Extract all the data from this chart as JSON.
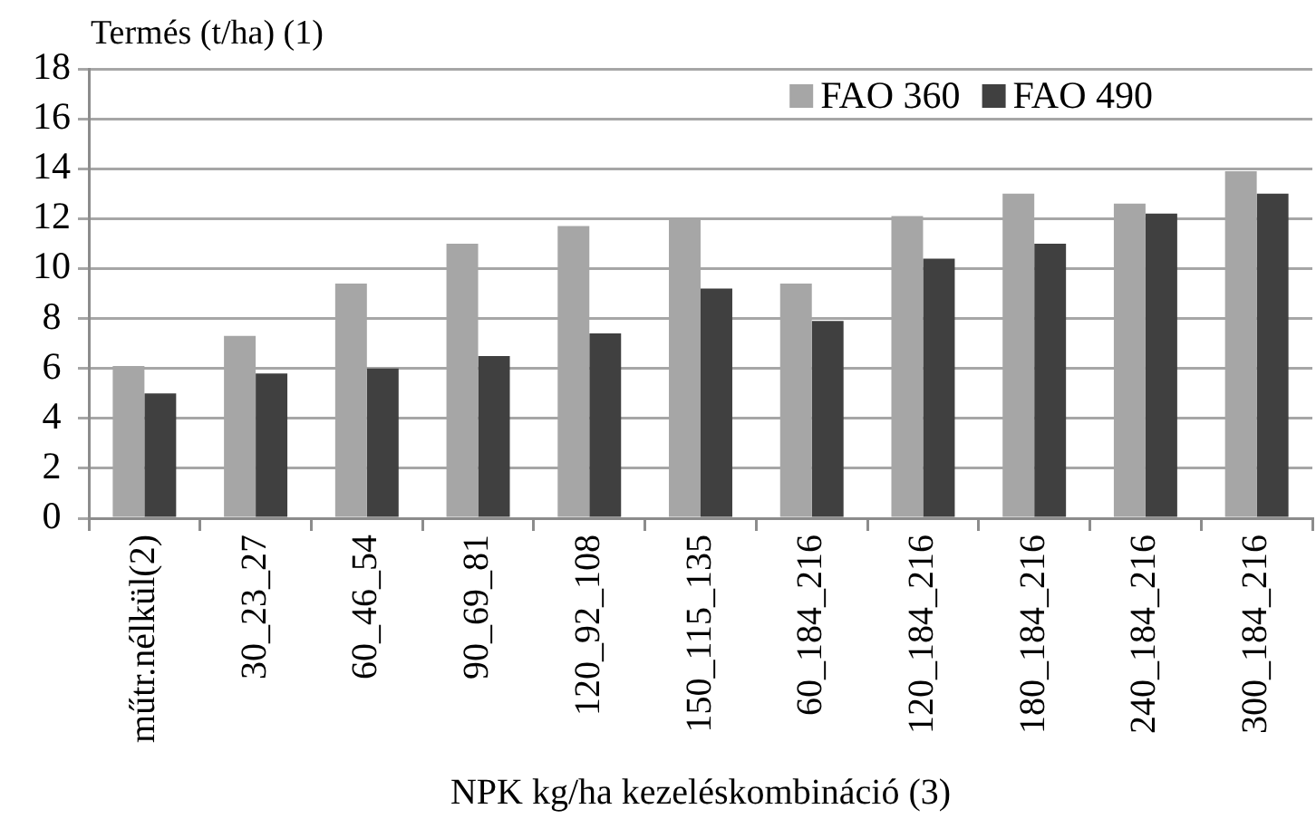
{
  "chart_data": {
    "type": "bar",
    "ylabel": "Termés (t/ha) (1)",
    "xlabel": "NPK kg/ha kezeléskombináció (3)",
    "categories": [
      "műtr.nélkül(2)",
      "30_23_27",
      "60_46_54",
      "90_69_81",
      "120_92_108",
      "150_115_135",
      "60_184_216",
      "120_184_216",
      "180_184_216",
      "240_184_216",
      "300_184_216"
    ],
    "series": [
      {
        "name": "FAO 360",
        "color": "#a6a6a6",
        "values": [
          6.1,
          7.3,
          9.4,
          11.0,
          11.7,
          12.0,
          9.4,
          12.1,
          13.0,
          12.6,
          13.9
        ]
      },
      {
        "name": "FAO 490",
        "color": "#404040",
        "values": [
          5.0,
          5.8,
          6.0,
          6.5,
          7.4,
          9.2,
          7.9,
          10.4,
          11.0,
          12.2,
          13.0
        ]
      }
    ],
    "ylim": [
      0,
      18
    ],
    "yticks": [
      0,
      2,
      4,
      6,
      8,
      10,
      12,
      14,
      16,
      18
    ],
    "grid": "y",
    "legend": "top right"
  }
}
